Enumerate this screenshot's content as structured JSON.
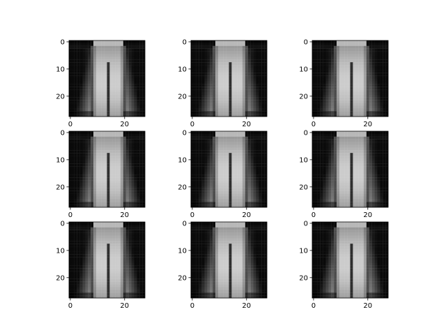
{
  "chart_data": {
    "type": "heatmap",
    "grid": {
      "rows": 3,
      "cols": 3
    },
    "colormap": "gray",
    "image_size": [
      28,
      28
    ],
    "image_description": "blurry grayscale reconstruction of a pair of trousers, identical across all 9 panels",
    "axes": {
      "xlim": [
        -0.5,
        27.5
      ],
      "ylim": [
        27.5,
        -0.5
      ],
      "xticks": [
        0,
        20
      ],
      "yticks": [
        0,
        10,
        20
      ],
      "xtick_labels": [
        "0",
        "20"
      ],
      "ytick_labels": [
        "0",
        "10",
        "20"
      ],
      "grid": false
    },
    "panels": [
      {
        "row": 0,
        "col": 0
      },
      {
        "row": 0,
        "col": 1
      },
      {
        "row": 0,
        "col": 2
      },
      {
        "row": 1,
        "col": 0
      },
      {
        "row": 1,
        "col": 1
      },
      {
        "row": 1,
        "col": 2
      },
      {
        "row": 2,
        "col": 0
      },
      {
        "row": 2,
        "col": 1
      },
      {
        "row": 2,
        "col": 2
      }
    ]
  }
}
